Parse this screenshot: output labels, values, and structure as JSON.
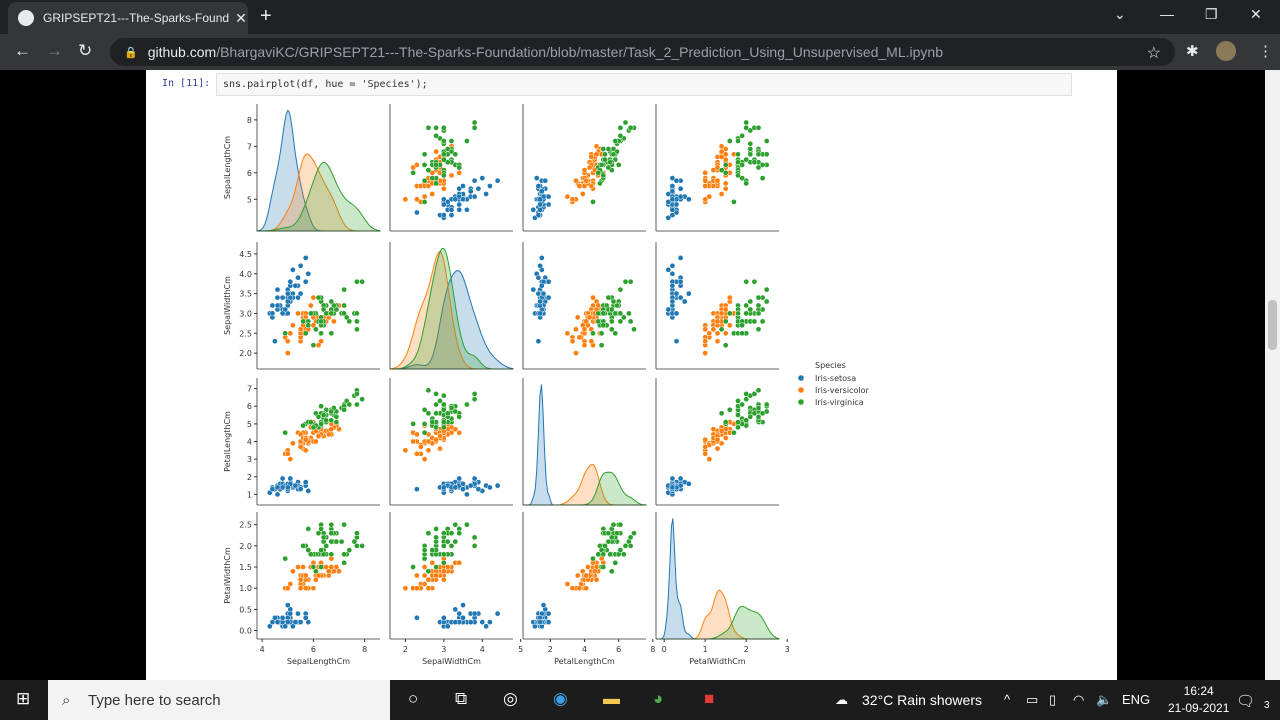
{
  "browser": {
    "tab_title": "GRIPSEPT21---The-Sparks-Found",
    "url_host": "github.com",
    "url_path": "/BhargaviKC/GRIPSEPT21---The-Sparks-Foundation/blob/master/Task_2_Prediction_Using_Unsupervised_ML.ipynb"
  },
  "notebook": {
    "prompt": "In [11]:",
    "code": "sns.pairplot(df, hue = 'Species');"
  },
  "chart_data": {
    "type": "scatter",
    "subtype": "pairplot",
    "variables": [
      "SepalLengthCm",
      "SepalWidthCm",
      "PetalLengthCm",
      "PetalWidthCm"
    ],
    "ranges": [
      [
        3.8,
        8.6
      ],
      [
        1.6,
        4.8
      ],
      [
        0.4,
        7.6
      ],
      [
        -0.2,
        2.8
      ]
    ],
    "x_ticks": [
      [
        "4",
        "6",
        "8"
      ],
      [
        "2",
        "3",
        "4",
        "5"
      ],
      [
        "2",
        "4",
        "6",
        "8"
      ],
      [
        "0",
        "1",
        "2",
        "3"
      ]
    ],
    "y_ticks": [
      [
        "5",
        "6",
        "7",
        "8"
      ],
      [
        "2.0",
        "2.5",
        "3.0",
        "3.5",
        "4.0",
        "4.5"
      ],
      [
        "1",
        "2",
        "3",
        "4",
        "5",
        "6",
        "7"
      ],
      [
        "0.0",
        "0.5",
        "1.0",
        "1.5",
        "2.0",
        "2.5"
      ]
    ],
    "diagonal": "kde",
    "legend": {
      "title": "Species",
      "placement": "right"
    },
    "series": [
      {
        "name": "Iris-setosa",
        "color": "#1f77b4",
        "points": [
          [
            5.1,
            3.5,
            1.4,
            0.2
          ],
          [
            4.9,
            3.0,
            1.4,
            0.2
          ],
          [
            4.7,
            3.2,
            1.3,
            0.2
          ],
          [
            4.6,
            3.1,
            1.5,
            0.2
          ],
          [
            5.0,
            3.6,
            1.4,
            0.2
          ],
          [
            5.4,
            3.9,
            1.7,
            0.4
          ],
          [
            4.6,
            3.4,
            1.4,
            0.3
          ],
          [
            5.0,
            3.4,
            1.5,
            0.2
          ],
          [
            4.4,
            2.9,
            1.4,
            0.2
          ],
          [
            4.9,
            3.1,
            1.5,
            0.1
          ],
          [
            5.4,
            3.7,
            1.5,
            0.2
          ],
          [
            4.8,
            3.4,
            1.6,
            0.2
          ],
          [
            4.8,
            3.0,
            1.4,
            0.1
          ],
          [
            4.3,
            3.0,
            1.1,
            0.1
          ],
          [
            5.8,
            4.0,
            1.2,
            0.2
          ],
          [
            5.7,
            4.4,
            1.5,
            0.4
          ],
          [
            5.4,
            3.9,
            1.3,
            0.4
          ],
          [
            5.1,
            3.5,
            1.4,
            0.3
          ],
          [
            5.7,
            3.8,
            1.7,
            0.3
          ],
          [
            5.1,
            3.8,
            1.5,
            0.3
          ],
          [
            5.4,
            3.4,
            1.7,
            0.2
          ],
          [
            5.1,
            3.7,
            1.5,
            0.4
          ],
          [
            4.6,
            3.6,
            1.0,
            0.2
          ],
          [
            5.1,
            3.3,
            1.7,
            0.5
          ],
          [
            4.8,
            3.4,
            1.9,
            0.2
          ],
          [
            5.0,
            3.0,
            1.6,
            0.2
          ],
          [
            5.0,
            3.4,
            1.6,
            0.4
          ],
          [
            5.2,
            3.5,
            1.5,
            0.2
          ],
          [
            5.2,
            3.4,
            1.4,
            0.2
          ],
          [
            4.7,
            3.2,
            1.6,
            0.2
          ],
          [
            4.8,
            3.1,
            1.6,
            0.2
          ],
          [
            5.4,
            3.4,
            1.5,
            0.4
          ],
          [
            5.2,
            4.1,
            1.5,
            0.1
          ],
          [
            5.5,
            4.2,
            1.4,
            0.2
          ],
          [
            4.9,
            3.1,
            1.5,
            0.1
          ],
          [
            5.0,
            3.2,
            1.2,
            0.2
          ],
          [
            5.5,
            3.5,
            1.3,
            0.2
          ],
          [
            4.9,
            3.1,
            1.5,
            0.1
          ],
          [
            4.4,
            3.0,
            1.3,
            0.2
          ],
          [
            5.1,
            3.4,
            1.5,
            0.2
          ],
          [
            5.0,
            3.5,
            1.3,
            0.3
          ],
          [
            4.5,
            2.3,
            1.3,
            0.3
          ],
          [
            4.4,
            3.2,
            1.3,
            0.2
          ],
          [
            5.0,
            3.5,
            1.6,
            0.6
          ],
          [
            5.1,
            3.8,
            1.9,
            0.4
          ],
          [
            4.8,
            3.0,
            1.4,
            0.3
          ],
          [
            5.1,
            3.8,
            1.6,
            0.2
          ],
          [
            4.6,
            3.2,
            1.4,
            0.2
          ],
          [
            5.3,
            3.7,
            1.5,
            0.2
          ],
          [
            5.0,
            3.3,
            1.4,
            0.2
          ]
        ]
      },
      {
        "name": "Iris-versicolor",
        "color": "#ff7f0e",
        "points": [
          [
            7.0,
            3.2,
            4.7,
            1.4
          ],
          [
            6.4,
            3.2,
            4.5,
            1.5
          ],
          [
            6.9,
            3.1,
            4.9,
            1.5
          ],
          [
            5.5,
            2.3,
            4.0,
            1.3
          ],
          [
            6.5,
            2.8,
            4.6,
            1.5
          ],
          [
            5.7,
            2.8,
            4.5,
            1.3
          ],
          [
            6.3,
            3.3,
            4.7,
            1.6
          ],
          [
            4.9,
            2.4,
            3.3,
            1.0
          ],
          [
            6.6,
            2.9,
            4.6,
            1.3
          ],
          [
            5.2,
            2.7,
            3.9,
            1.4
          ],
          [
            5.0,
            2.0,
            3.5,
            1.0
          ],
          [
            5.9,
            3.0,
            4.2,
            1.5
          ],
          [
            6.0,
            2.2,
            4.0,
            1.0
          ],
          [
            6.1,
            2.9,
            4.7,
            1.4
          ],
          [
            5.6,
            2.9,
            3.6,
            1.3
          ],
          [
            6.7,
            3.1,
            4.4,
            1.4
          ],
          [
            5.6,
            3.0,
            4.5,
            1.5
          ],
          [
            5.8,
            2.7,
            4.1,
            1.0
          ],
          [
            6.2,
            2.2,
            4.5,
            1.5
          ],
          [
            5.6,
            2.5,
            3.9,
            1.1
          ],
          [
            5.9,
            3.2,
            4.8,
            1.8
          ],
          [
            6.1,
            2.8,
            4.0,
            1.3
          ],
          [
            6.3,
            2.5,
            4.9,
            1.5
          ],
          [
            6.1,
            2.8,
            4.7,
            1.2
          ],
          [
            6.4,
            2.9,
            4.3,
            1.3
          ],
          [
            6.6,
            3.0,
            4.4,
            1.4
          ],
          [
            6.8,
            2.8,
            4.8,
            1.4
          ],
          [
            6.7,
            3.0,
            5.0,
            1.7
          ],
          [
            6.0,
            2.9,
            4.5,
            1.5
          ],
          [
            5.7,
            2.6,
            3.5,
            1.0
          ],
          [
            5.5,
            2.4,
            3.8,
            1.1
          ],
          [
            5.5,
            2.4,
            3.7,
            1.0
          ],
          [
            5.8,
            2.7,
            3.9,
            1.2
          ],
          [
            6.0,
            2.7,
            5.1,
            1.6
          ],
          [
            5.4,
            3.0,
            4.5,
            1.5
          ],
          [
            6.0,
            3.4,
            4.5,
            1.6
          ],
          [
            6.7,
            3.1,
            4.7,
            1.5
          ],
          [
            6.3,
            2.3,
            4.4,
            1.3
          ],
          [
            5.6,
            3.0,
            4.1,
            1.3
          ],
          [
            5.5,
            2.5,
            4.0,
            1.3
          ],
          [
            5.5,
            2.6,
            4.4,
            1.2
          ],
          [
            6.1,
            3.0,
            4.6,
            1.4
          ],
          [
            5.8,
            2.6,
            4.0,
            1.2
          ],
          [
            5.0,
            2.3,
            3.3,
            1.0
          ],
          [
            5.6,
            2.7,
            4.2,
            1.3
          ],
          [
            5.7,
            3.0,
            4.2,
            1.2
          ],
          [
            5.7,
            2.9,
            4.2,
            1.3
          ],
          [
            6.2,
            2.9,
            4.3,
            1.3
          ],
          [
            5.1,
            2.5,
            3.0,
            1.1
          ],
          [
            5.7,
            2.8,
            4.1,
            1.3
          ]
        ]
      },
      {
        "name": "Iris-virginica",
        "color": "#2ca02c",
        "points": [
          [
            6.3,
            3.3,
            6.0,
            2.5
          ],
          [
            5.8,
            2.7,
            5.1,
            1.9
          ],
          [
            7.1,
            3.0,
            5.9,
            2.1
          ],
          [
            6.3,
            2.9,
            5.6,
            1.8
          ],
          [
            6.5,
            3.0,
            5.8,
            2.2
          ],
          [
            7.6,
            3.0,
            6.6,
            2.1
          ],
          [
            4.9,
            2.5,
            4.5,
            1.7
          ],
          [
            7.3,
            2.9,
            6.3,
            1.8
          ],
          [
            6.7,
            2.5,
            5.8,
            1.8
          ],
          [
            7.2,
            3.6,
            6.1,
            2.5
          ],
          [
            6.5,
            3.2,
            5.1,
            2.0
          ],
          [
            6.4,
            2.7,
            5.3,
            1.9
          ],
          [
            6.8,
            3.0,
            5.5,
            2.1
          ],
          [
            5.7,
            2.5,
            5.0,
            2.0
          ],
          [
            5.8,
            2.8,
            5.1,
            2.4
          ],
          [
            6.4,
            3.2,
            5.3,
            2.3
          ],
          [
            6.5,
            3.0,
            5.5,
            1.8
          ],
          [
            7.7,
            3.8,
            6.7,
            2.2
          ],
          [
            7.7,
            2.6,
            6.9,
            2.3
          ],
          [
            6.0,
            2.2,
            5.0,
            1.5
          ],
          [
            6.9,
            3.2,
            5.7,
            2.3
          ],
          [
            5.6,
            2.8,
            4.9,
            2.0
          ],
          [
            7.7,
            2.8,
            6.7,
            2.0
          ],
          [
            6.3,
            2.7,
            4.9,
            1.8
          ],
          [
            6.7,
            3.3,
            5.7,
            2.1
          ],
          [
            7.2,
            3.2,
            6.0,
            1.8
          ],
          [
            6.2,
            2.8,
            4.8,
            1.8
          ],
          [
            6.1,
            3.0,
            4.9,
            1.8
          ],
          [
            6.4,
            2.8,
            5.6,
            2.1
          ],
          [
            7.2,
            3.0,
            5.8,
            1.6
          ],
          [
            7.4,
            2.8,
            6.1,
            1.9
          ],
          [
            7.9,
            3.8,
            6.4,
            2.0
          ],
          [
            6.4,
            2.8,
            5.6,
            2.2
          ],
          [
            6.3,
            2.8,
            5.1,
            1.5
          ],
          [
            6.1,
            2.6,
            5.6,
            1.4
          ],
          [
            7.7,
            3.0,
            6.1,
            2.3
          ],
          [
            6.3,
            3.4,
            5.6,
            2.4
          ],
          [
            6.4,
            3.1,
            5.5,
            1.8
          ],
          [
            6.0,
            3.0,
            4.8,
            1.8
          ],
          [
            6.9,
            3.1,
            5.4,
            2.1
          ],
          [
            6.7,
            3.1,
            5.6,
            2.4
          ],
          [
            6.9,
            3.1,
            5.1,
            2.3
          ],
          [
            5.8,
            2.7,
            5.1,
            1.9
          ],
          [
            6.8,
            3.2,
            5.9,
            2.3
          ],
          [
            6.7,
            3.3,
            5.7,
            2.5
          ],
          [
            6.7,
            3.0,
            5.2,
            2.3
          ],
          [
            6.3,
            2.5,
            5.0,
            1.9
          ],
          [
            6.5,
            3.0,
            5.2,
            2.0
          ],
          [
            6.2,
            3.4,
            5.4,
            2.3
          ],
          [
            5.9,
            3.0,
            5.1,
            1.8
          ]
        ]
      }
    ]
  },
  "taskbar": {
    "search_placeholder": "Type here to search",
    "weather": "32°C  Rain showers",
    "lang": "ENG",
    "time": "16:24",
    "date": "21-09-2021",
    "notifications": "3"
  }
}
